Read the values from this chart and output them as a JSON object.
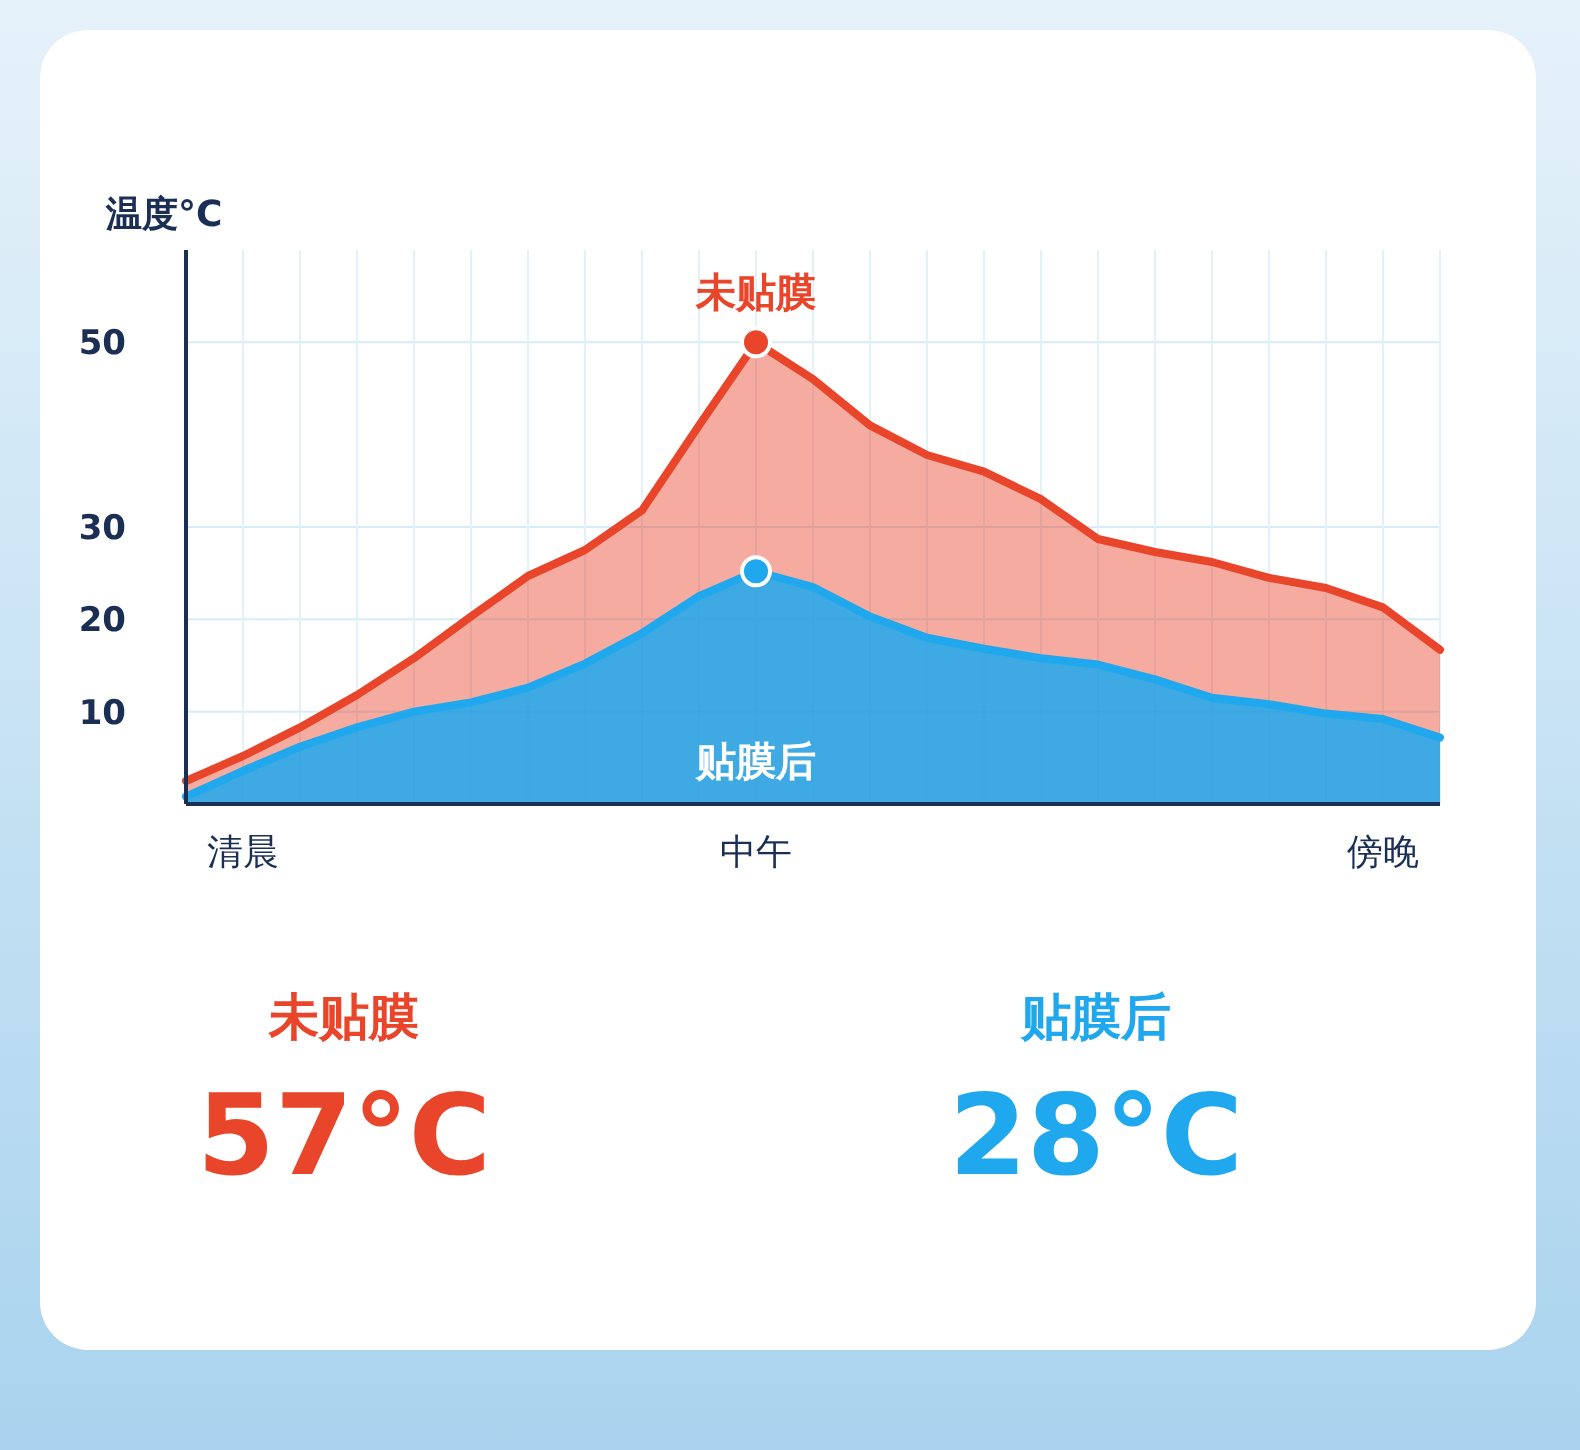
{
  "chart_data": {
    "type": "area",
    "ylabel": "温度°C",
    "categories": [
      null,
      "清晨",
      null,
      null,
      null,
      null,
      null,
      null,
      null,
      null,
      "中午",
      null,
      null,
      null,
      null,
      null,
      null,
      null,
      null,
      null,
      null,
      "傍晚",
      null
    ],
    "ylim": [
      0,
      60
    ],
    "yticks": [
      10,
      20,
      30,
      50
    ],
    "grid": true,
    "series": [
      {
        "name": "未贴膜",
        "color": "#e8452a",
        "values": [
          2.5,
          5.2,
          8.3,
          11.8,
          15.8,
          20.3,
          24.7,
          27.5,
          31.8,
          41,
          50,
          46,
          41,
          37.8,
          36,
          33,
          28.7,
          27.3,
          26.2,
          24.5,
          23.4,
          21.3,
          16.7
        ]
      },
      {
        "name": "贴膜后",
        "color": "#1fa8ee",
        "values": [
          0.8,
          3.6,
          6.2,
          8.3,
          10,
          11,
          12.6,
          15.2,
          18.5,
          22.5,
          25.2,
          23.5,
          20.3,
          18,
          16.8,
          15.8,
          15.1,
          13.5,
          11.5,
          10.8,
          9.8,
          9.2,
          7.2
        ]
      }
    ],
    "annotations": [
      "未贴膜",
      "57°C",
      "贴膜后",
      "28°C"
    ]
  }
}
